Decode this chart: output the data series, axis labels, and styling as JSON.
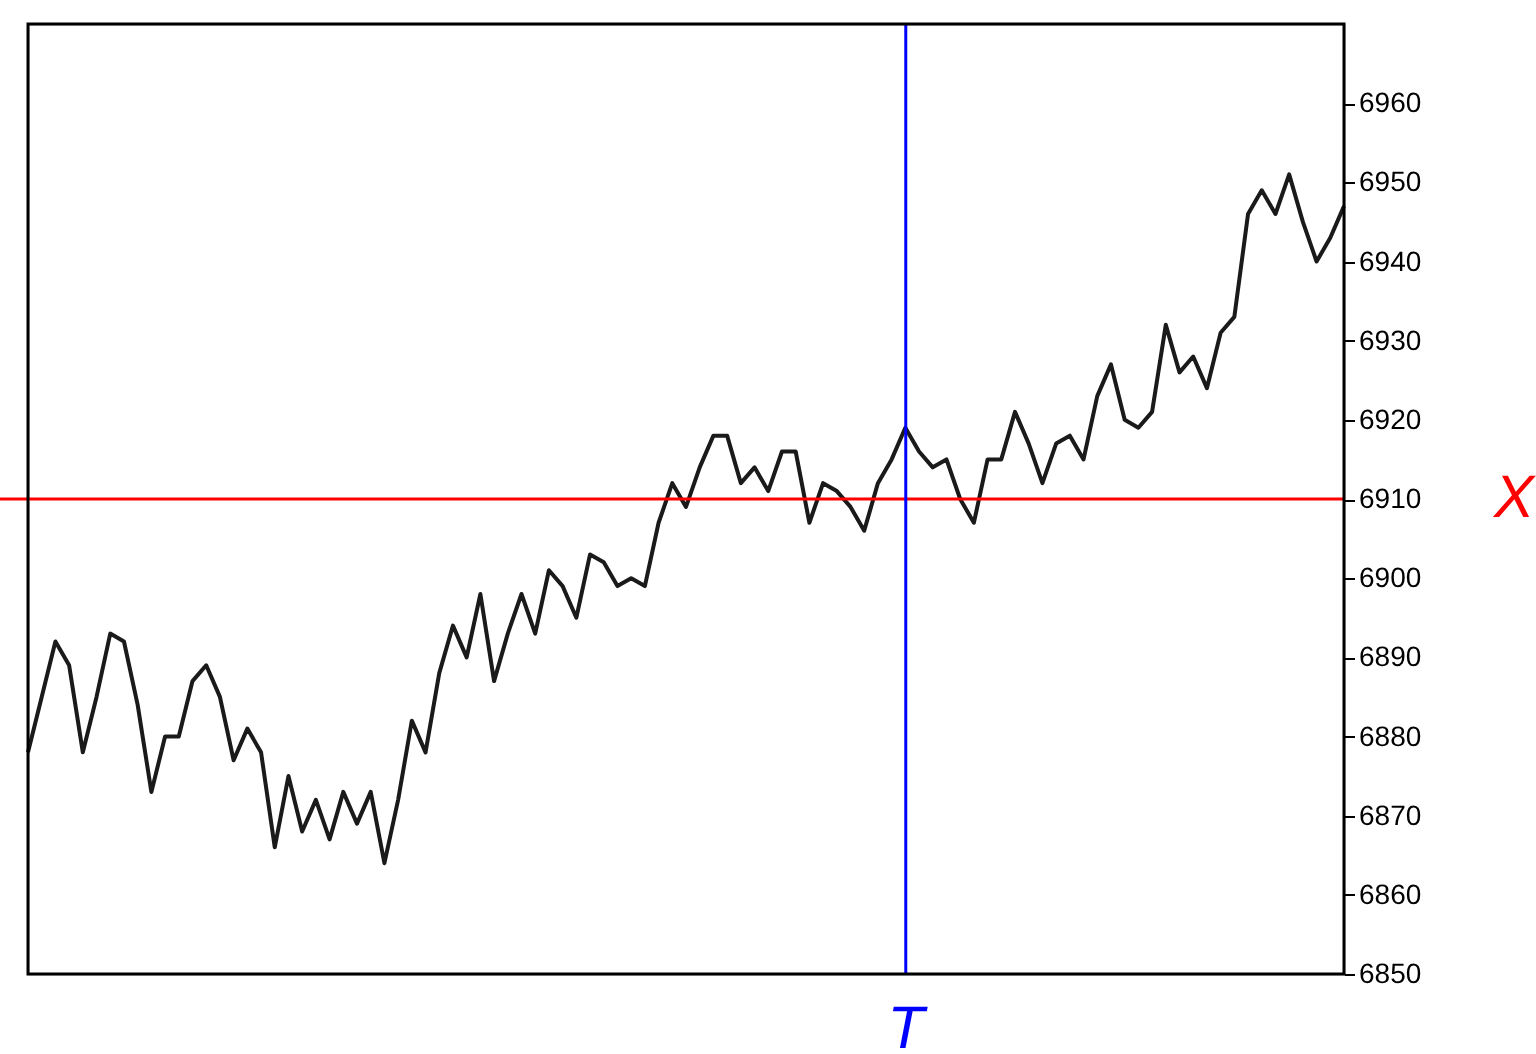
{
  "chart_data": {
    "type": "line",
    "categories": [
      null,
      null,
      null,
      null,
      null,
      null,
      null,
      null,
      null,
      null,
      null,
      null,
      null,
      null,
      null,
      null,
      null,
      null,
      null,
      null,
      null,
      null,
      null,
      null,
      null,
      null,
      null,
      null,
      null,
      null,
      null,
      null,
      null,
      null,
      null,
      null,
      null,
      null,
      null,
      null,
      null,
      null,
      null,
      null,
      null,
      null,
      null,
      null,
      null,
      null,
      null,
      null,
      null,
      null,
      null,
      null,
      null,
      null,
      null,
      null,
      null,
      null,
      null,
      null,
      null,
      null,
      null,
      null,
      null,
      null,
      null,
      null,
      null,
      null,
      null,
      null,
      null,
      null,
      null,
      null,
      null,
      null,
      null,
      null,
      null,
      null,
      null,
      null,
      null,
      null,
      null,
      null,
      null,
      null,
      null,
      null,
      null
    ],
    "series": [
      {
        "color": "#1a1a1a",
        "values": [
          6878,
          6885,
          6892,
          6889,
          6878,
          6885,
          6893,
          6892,
          6884,
          6873,
          6880,
          6880,
          6887,
          6889,
          6885,
          6877,
          6881,
          6878,
          6866,
          6875,
          6868,
          6872,
          6867,
          6873,
          6869,
          6873,
          6864,
          6872,
          6882,
          6878,
          6888,
          6894,
          6890,
          6898,
          6887,
          6893,
          6898,
          6893,
          6901,
          6899,
          6895,
          6903,
          6902,
          6899,
          6900,
          6899,
          6907,
          6912,
          6909,
          6914,
          6918,
          6918,
          6912,
          6914,
          6911,
          6916,
          6916,
          6907,
          6912,
          6911,
          6909,
          6906,
          6912,
          6915,
          6919,
          6916,
          6914,
          6915,
          6910,
          6907,
          6915,
          6915,
          6921,
          6917,
          6912,
          6917,
          6918,
          6915,
          6923,
          6927,
          6920,
          6919,
          6921,
          6932,
          6926,
          6928,
          6924,
          6931,
          6933,
          6946,
          6949,
          6946,
          6951,
          6945,
          6940,
          6943,
          6947
        ]
      }
    ],
    "ylim": [
      6850,
      6970
    ],
    "yticks": [
      6850,
      6860,
      6870,
      6880,
      6890,
      6900,
      6910,
      6920,
      6930,
      6940,
      6950,
      6960
    ],
    "tick_labels": "y",
    "grid": false,
    "annotations": [
      "T"
    ],
    "ref_lines": [
      {
        "axis": "y",
        "value": 6910,
        "label": "X",
        "color": "#ff0000"
      }
    ]
  }
}
